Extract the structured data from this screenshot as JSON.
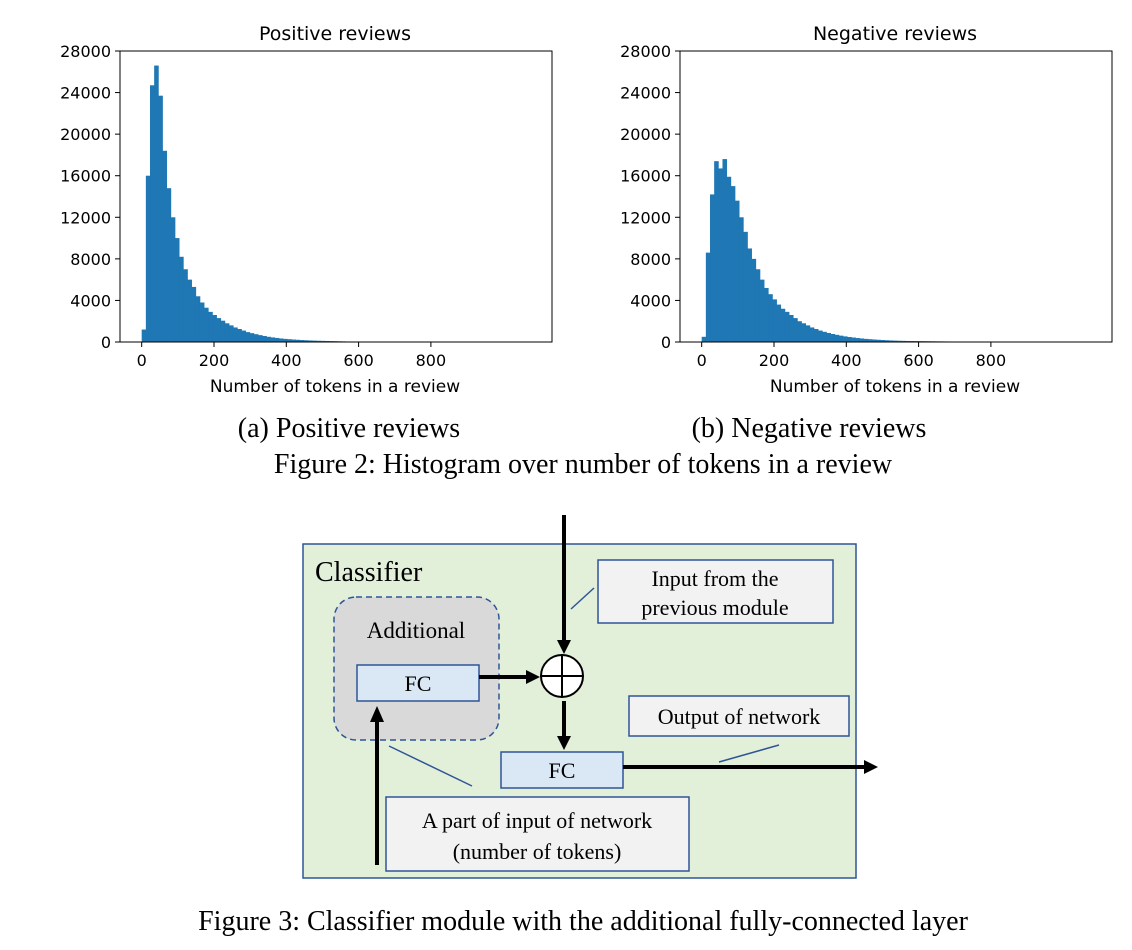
{
  "figure2": {
    "subcaption_a": "(a) Positive reviews",
    "subcaption_b": "(b) Negative reviews",
    "caption": "Figure 2: Histogram over number of tokens in a review"
  },
  "chart_data": [
    {
      "type": "bar",
      "title": "Positive reviews",
      "xlabel": "Number of tokens in a review",
      "ylabel": "",
      "xlim": [
        -60,
        1135
      ],
      "ylim": [
        0,
        28000
      ],
      "xticks": [
        0,
        200,
        400,
        600,
        800
      ],
      "yticks": [
        0,
        4000,
        8000,
        12000,
        16000,
        20000,
        24000,
        28000
      ],
      "bin_width": 11.5,
      "bin_start": 0,
      "values": [
        1200,
        16000,
        24700,
        26600,
        23700,
        18400,
        14800,
        12000,
        10000,
        8200,
        7000,
        6000,
        5300,
        4400,
        3800,
        3300,
        2900,
        2600,
        2300,
        2050,
        1800,
        1600,
        1400,
        1250,
        1100,
        950,
        850,
        750,
        660,
        580,
        500,
        440,
        390,
        340,
        300,
        270,
        240,
        215,
        190,
        170,
        150,
        135,
        120,
        110,
        100,
        90,
        80,
        70,
        60,
        50,
        45,
        40,
        35,
        30,
        25
      ],
      "color": "#1f77b4",
      "grid": false
    },
    {
      "type": "bar",
      "title": "Negative reviews",
      "xlabel": "Number of tokens in a review",
      "ylabel": "",
      "xlim": [
        -60,
        1135
      ],
      "ylim": [
        0,
        28000
      ],
      "xticks": [
        0,
        200,
        400,
        600,
        800
      ],
      "yticks": [
        0,
        4000,
        8000,
        12000,
        16000,
        20000,
        24000,
        28000
      ],
      "bin_width": 11.5,
      "bin_start": 0,
      "values": [
        500,
        8600,
        14200,
        17400,
        16700,
        17600,
        15900,
        15000,
        13600,
        12000,
        10600,
        9000,
        8000,
        7000,
        6000,
        5200,
        4600,
        4100,
        3600,
        3200,
        2900,
        2600,
        2300,
        2000,
        1800,
        1600,
        1400,
        1250,
        1100,
        980,
        870,
        770,
        690,
        610,
        540,
        480,
        430,
        380,
        340,
        300,
        270,
        240,
        215,
        190,
        170,
        150,
        135,
        120,
        110,
        100,
        95,
        90,
        85,
        80,
        75,
        70,
        65,
        60,
        55,
        50,
        45,
        40,
        35,
        30,
        28,
        26,
        24,
        22,
        20,
        18,
        16,
        14,
        12,
        10,
        8,
        6,
        5,
        4,
        3,
        2,
        1,
        1,
        1,
        1,
        1
      ],
      "color": "#1f77b4",
      "grid": false
    }
  ],
  "figure3": {
    "classifier_label": "Classifier",
    "additional_label": "Additional",
    "fc_inner_label": "FC",
    "fc_output_label": "FC",
    "callout_input_line1": "Input from the",
    "callout_input_line2": "previous module",
    "callout_output": "Output of network",
    "callout_part_line1": "A part of input of network",
    "callout_part_line2": "(number of tokens)",
    "caption": "Figure 3: Classifier module with the additional fully-connected layer",
    "colors": {
      "classifier_bg": "#e2efd9",
      "classifier_border": "#2f5597",
      "additional_bg": "#d9d9d9",
      "fc_bg": "#dae7f5",
      "callout_bg": "#f2f2f2"
    }
  }
}
